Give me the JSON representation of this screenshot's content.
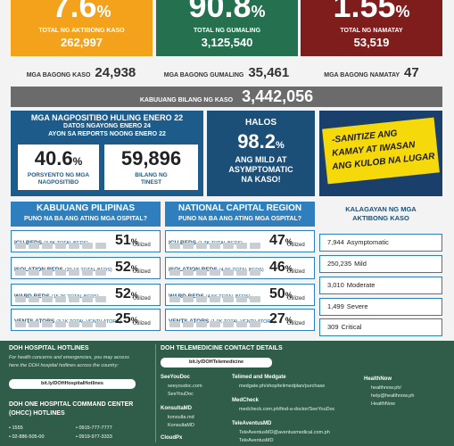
{
  "stats": [
    {
      "percent": "7.6",
      "unit": "%",
      "label": "TOTAL NG AKTIBONG KASO",
      "total": "262,997"
    },
    {
      "percent": "90.8",
      "unit": "%",
      "label": "TOTAL NG GUMALING",
      "total": "3,125,540"
    },
    {
      "percent": "1.55",
      "unit": "%",
      "label": "TOTAL NG NAMATAY",
      "total": "53,519"
    }
  ],
  "new": [
    {
      "label": "MGA BAGONG KASO",
      "value": "24,938"
    },
    {
      "label": "MGA BAGONG GUMALING",
      "value": "35,461"
    },
    {
      "label": "MGA BAGONG NAMATAY",
      "value": "47"
    }
  ],
  "total_cases": {
    "label": "KABUUANG BILANG NG KASO",
    "value": "3,442,056"
  },
  "positivity": {
    "title": "MGA NAGPOSITIBO HULING ENERO 22",
    "subtitle": [
      "DATOS NGAYONG ENERO 24",
      "AYON SA REPORTS NOONG ENERO 22"
    ],
    "rate": "40.6",
    "unit": "%",
    "rate_label": [
      "PORSYENTO NG MGA",
      "NAGPOSITIBO"
    ],
    "tested": "59,896",
    "tested_label": [
      "BILANG NG",
      "TINEST"
    ]
  },
  "mild": {
    "pre": "HALOS",
    "value": "98.2",
    "unit": "%",
    "text": [
      "ANG MILD AT",
      "ASYMPTOMATIC",
      "NA KASO!"
    ]
  },
  "banner": [
    "-SANITIZE ANG",
    "KAMAY AT IWASAN",
    "ANG KULOB NA LUGAR"
  ],
  "hospitals": [
    {
      "title": "KABUUANG PILIPINAS",
      "subtitle": "PUNO NA BA ANG ATING MGA OSPITAL?",
      "rows": [
        {
          "label": "ICU BEDS",
          "capacity": "(3.8K TOTAL BEDS)",
          "value": "51",
          "unit": "%",
          "note": "Utilized"
        },
        {
          "label": "ISOLATION BEDS",
          "capacity": "(20.1K TOTAL BEDS)",
          "value": "52",
          "unit": "%",
          "note": "Utilized"
        },
        {
          "label": "WARD BEDS",
          "capacity": "(15.2K TOTAL BEDS)",
          "value": "52",
          "unit": "%",
          "note": "Utilized"
        },
        {
          "label": "VENTILATORS",
          "capacity": "(3.1K TOTAL VENTILATORS)",
          "value": "25",
          "unit": "%",
          "note": "Utilized"
        }
      ]
    },
    {
      "title": "NATIONAL CAPITAL REGION",
      "subtitle": "PUNO NA BA ANG ATING MGA OSPITAL?",
      "rows": [
        {
          "label": "ICU BEDS",
          "capacity": "(1.3K TOTAL BEDS)",
          "value": "47",
          "unit": "%",
          "note": "Utilized"
        },
        {
          "label": "ISOLATION BEDS",
          "capacity": "(4.5K TOTAL BEDS)",
          "value": "46",
          "unit": "%",
          "note": "Utilized"
        },
        {
          "label": "WARD BEDS",
          "capacity": "(4.5K TOTAL BEDS)",
          "value": "50",
          "unit": "%",
          "note": "Utilized"
        },
        {
          "label": "VENTILATORS",
          "capacity": "(1.0K TOTAL VENTILATORS)",
          "value": "27",
          "unit": "%",
          "note": "Utilized"
        }
      ]
    }
  ],
  "active": {
    "title": [
      "KALAGAYAN NG MGA",
      "AKTIBONG KASO"
    ],
    "items": [
      {
        "value": "7,944",
        "label": "Asymptomatic"
      },
      {
        "value": "250,235",
        "label": "Mild"
      },
      {
        "value": "3,010",
        "label": "Moderate"
      },
      {
        "value": "1,499",
        "label": "Severe"
      },
      {
        "value": "309",
        "label": "Critical"
      }
    ]
  },
  "footer": {
    "hotlines": {
      "title": "DOH HOSPITAL HOTLINES",
      "text": [
        "For health concerns and emergencies, you may access",
        "here the DOH hospital hotlines across the country:"
      ],
      "link": "bit.ly/DOHHospitalHotlines",
      "ohcc_title": [
        "DOH ONE HOSPITAL COMMAND CENTER",
        "(OHCC) HOTLINES"
      ],
      "numbers": [
        "• 1555",
        "• 0915-777-7777",
        "• 02-886-505-00",
        "• 0919-977-3333"
      ]
    },
    "telemedicine": {
      "title": "DOH TELEMEDICINE CONTACT DETAILS",
      "link": "bit.ly/DOHTelemedicine",
      "providers": [
        {
          "name": "SeeYouDoc",
          "links": [
            "seeyoudoc.com",
            "SeeYouDoc"
          ]
        },
        {
          "name": "KonsultaMD",
          "links": [
            "konsulta.md",
            "KonsultaMD"
          ]
        },
        {
          "name": "CloudPx",
          "links": []
        },
        {
          "name": "Telimed and Medgate",
          "links": [
            "medgate.ph/shop/telimedplan/purchase"
          ]
        },
        {
          "name": "MedCheck",
          "links": [
            "medcheck.com.ph/find-a-doctor/SeeYouDoc"
          ]
        },
        {
          "name": "TeleAventusMD",
          "links": [
            "TeleAventusMD@aventusmedical.com.ph",
            "TeleAventusMD"
          ]
        },
        {
          "name": "HealthNow",
          "links": [
            "healthnow.ph/",
            "help@healthnow.ph",
            "HealthNow"
          ]
        }
      ]
    }
  }
}
